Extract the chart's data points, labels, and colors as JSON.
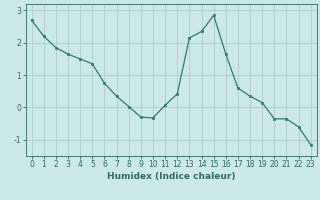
{
  "x": [
    0,
    1,
    2,
    3,
    4,
    5,
    6,
    7,
    8,
    9,
    10,
    11,
    12,
    13,
    14,
    15,
    16,
    17,
    18,
    19,
    20,
    21,
    22,
    23
  ],
  "y": [
    2.7,
    2.2,
    1.85,
    1.65,
    1.5,
    1.35,
    0.75,
    0.35,
    0.03,
    -0.3,
    -0.32,
    0.07,
    0.42,
    2.15,
    2.35,
    2.85,
    1.65,
    0.6,
    0.35,
    0.15,
    -0.35,
    -0.35,
    -0.6,
    -1.15
  ],
  "line_color": "#2e7d6e",
  "marker_color": "#2e7d6e",
  "bg_color": "#cce8e8",
  "grid_color": "#b0cccc",
  "xlabel": "Humidex (Indice chaleur)",
  "ylim": [
    -1.5,
    3.2
  ],
  "xlim": [
    -0.5,
    23.5
  ],
  "yticks": [
    -1,
    0,
    1,
    2,
    3
  ],
  "xticks": [
    0,
    1,
    2,
    3,
    4,
    5,
    6,
    7,
    8,
    9,
    10,
    11,
    12,
    13,
    14,
    15,
    16,
    17,
    18,
    19,
    20,
    21,
    22,
    23
  ],
  "tick_color": "#2e6e60",
  "label_fontsize": 6.5,
  "tick_fontsize": 5.5
}
